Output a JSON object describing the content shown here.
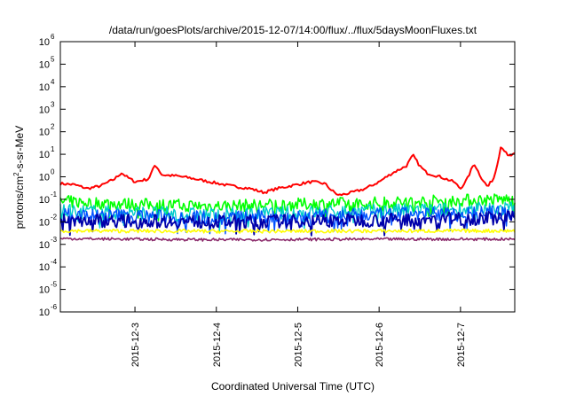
{
  "chart_data": {
    "type": "line",
    "title": "/data/run/goesPlots/archive/2015-12-07/14:00/flux/../flux/5daysMoonFluxes.txt",
    "xlabel": "Coordinated Universal Time (UTC)",
    "ylabel": "protons/cm²-s-sr-MeV",
    "x_range": [
      "2015-12-02T02:00",
      "2015-12-07T16:00"
    ],
    "x_ticks": [
      "2015-12-3",
      "2015-12-4",
      "2015-12-5",
      "2015-12-6",
      "2015-12-7"
    ],
    "y_scale": "log",
    "ylim": [
      1e-06,
      1000000.0
    ],
    "y_ticks": [
      {
        "base": "10",
        "exp": "-6"
      },
      {
        "base": "10",
        "exp": "-5"
      },
      {
        "base": "10",
        "exp": "-4"
      },
      {
        "base": "10",
        "exp": "-3"
      },
      {
        "base": "10",
        "exp": "-2"
      },
      {
        "base": "10",
        "exp": "-1"
      },
      {
        "base": "10",
        "exp": "0"
      },
      {
        "base": "10",
        "exp": "1"
      },
      {
        "base": "10",
        "exp": "2"
      },
      {
        "base": "10",
        "exp": "3"
      },
      {
        "base": "10",
        "exp": "4"
      },
      {
        "base": "10",
        "exp": "5"
      },
      {
        "base": "10",
        "exp": "6"
      }
    ],
    "grid": false,
    "legend": "none",
    "series": [
      {
        "color": "#ff0000",
        "width": 2,
        "points": [
          [
            "2015-12-02T02:00",
            0.5
          ],
          [
            "2015-12-02T06:00",
            0.45
          ],
          [
            "2015-12-02T10:00",
            0.3
          ],
          [
            "2015-12-02T14:00",
            0.4
          ],
          [
            "2015-12-02T18:00",
            0.8
          ],
          [
            "2015-12-02T20:00",
            1.5
          ],
          [
            "2015-12-02T22:00",
            0.9
          ],
          [
            "2015-12-03T00:00",
            0.6
          ],
          [
            "2015-12-03T04:00",
            0.8
          ],
          [
            "2015-12-03T06:00",
            3.5
          ],
          [
            "2015-12-03T08:00",
            1.2
          ],
          [
            "2015-12-03T12:00",
            1.1
          ],
          [
            "2015-12-03T16:00",
            0.9
          ],
          [
            "2015-12-03T22:00",
            0.6
          ],
          [
            "2015-12-04T04:00",
            0.4
          ],
          [
            "2015-12-04T10:00",
            0.3
          ],
          [
            "2015-12-04T14:00",
            0.2
          ],
          [
            "2015-12-04T18:00",
            0.3
          ],
          [
            "2015-12-04T22:00",
            0.4
          ],
          [
            "2015-12-05T04:00",
            0.6
          ],
          [
            "2015-12-05T08:00",
            0.5
          ],
          [
            "2015-12-05T10:00",
            0.25
          ],
          [
            "2015-12-05T12:00",
            0.15
          ],
          [
            "2015-12-05T16:00",
            0.2
          ],
          [
            "2015-12-05T20:00",
            0.3
          ],
          [
            "2015-12-06T00:00",
            0.6
          ],
          [
            "2015-12-06T04:00",
            1.5
          ],
          [
            "2015-12-06T08:00",
            3.0
          ],
          [
            "2015-12-06T10:00",
            9.0
          ],
          [
            "2015-12-06T12:00",
            3.0
          ],
          [
            "2015-12-06T14:00",
            1.5
          ],
          [
            "2015-12-06T18:00",
            1.0
          ],
          [
            "2015-12-06T22:00",
            0.6
          ],
          [
            "2015-12-07T00:00",
            0.3
          ],
          [
            "2015-12-07T02:00",
            0.8
          ],
          [
            "2015-12-07T04:00",
            4.0
          ],
          [
            "2015-12-07T06:00",
            1.0
          ],
          [
            "2015-12-07T08:00",
            0.35
          ],
          [
            "2015-12-07T10:00",
            1.0
          ],
          [
            "2015-12-07T12:00",
            25.0
          ],
          [
            "2015-12-07T14:00",
            8.0
          ],
          [
            "2015-12-07T16:00",
            10.0
          ]
        ]
      },
      {
        "color": "#00ff00",
        "width": 1.6,
        "points": [
          [
            "2015-12-02T02:00",
            0.08
          ],
          [
            "2015-12-03T00:00",
            0.06
          ],
          [
            "2015-12-04T00:00",
            0.05
          ],
          [
            "2015-12-05T00:00",
            0.06
          ],
          [
            "2015-12-06T00:00",
            0.07
          ],
          [
            "2015-12-07T00:00",
            0.09
          ],
          [
            "2015-12-07T16:00",
            0.1
          ]
        ]
      },
      {
        "color": "#00cccc",
        "width": 1.4,
        "points": [
          [
            "2015-12-02T02:00",
            0.03
          ],
          [
            "2015-12-03T00:00",
            0.025
          ],
          [
            "2015-12-04T00:00",
            0.02
          ],
          [
            "2015-12-05T00:00",
            0.025
          ],
          [
            "2015-12-06T00:00",
            0.03
          ],
          [
            "2015-12-07T00:00",
            0.035
          ],
          [
            "2015-12-07T16:00",
            0.04
          ]
        ]
      },
      {
        "color": "#0050ff",
        "width": 1.4,
        "points": [
          [
            "2015-12-02T02:00",
            0.02
          ],
          [
            "2015-12-03T00:00",
            0.018
          ],
          [
            "2015-12-04T00:00",
            0.015
          ],
          [
            "2015-12-05T00:00",
            0.017
          ],
          [
            "2015-12-06T00:00",
            0.02
          ],
          [
            "2015-12-07T00:00",
            0.024
          ],
          [
            "2015-12-07T16:00",
            0.025
          ]
        ]
      },
      {
        "color": "#0000aa",
        "width": 1.8,
        "points": [
          [
            "2015-12-02T02:00",
            0.012
          ],
          [
            "2015-12-03T00:00",
            0.011
          ],
          [
            "2015-12-04T00:00",
            0.01
          ],
          [
            "2015-12-05T00:00",
            0.011
          ],
          [
            "2015-12-06T00:00",
            0.012
          ],
          [
            "2015-12-07T00:00",
            0.014
          ],
          [
            "2015-12-07T16:00",
            0.015
          ]
        ]
      },
      {
        "color": "#ffff00",
        "width": 1.6,
        "points": [
          [
            "2015-12-02T02:00",
            0.004
          ],
          [
            "2015-12-04T00:00",
            0.0038
          ],
          [
            "2015-12-06T00:00",
            0.0039
          ],
          [
            "2015-12-07T16:00",
            0.004
          ]
        ]
      },
      {
        "color": "#8b2a6b",
        "width": 1.6,
        "points": [
          [
            "2015-12-02T02:00",
            0.0018
          ],
          [
            "2015-12-04T00:00",
            0.0016
          ],
          [
            "2015-12-06T00:00",
            0.0017
          ],
          [
            "2015-12-07T16:00",
            0.0017
          ]
        ]
      }
    ]
  }
}
